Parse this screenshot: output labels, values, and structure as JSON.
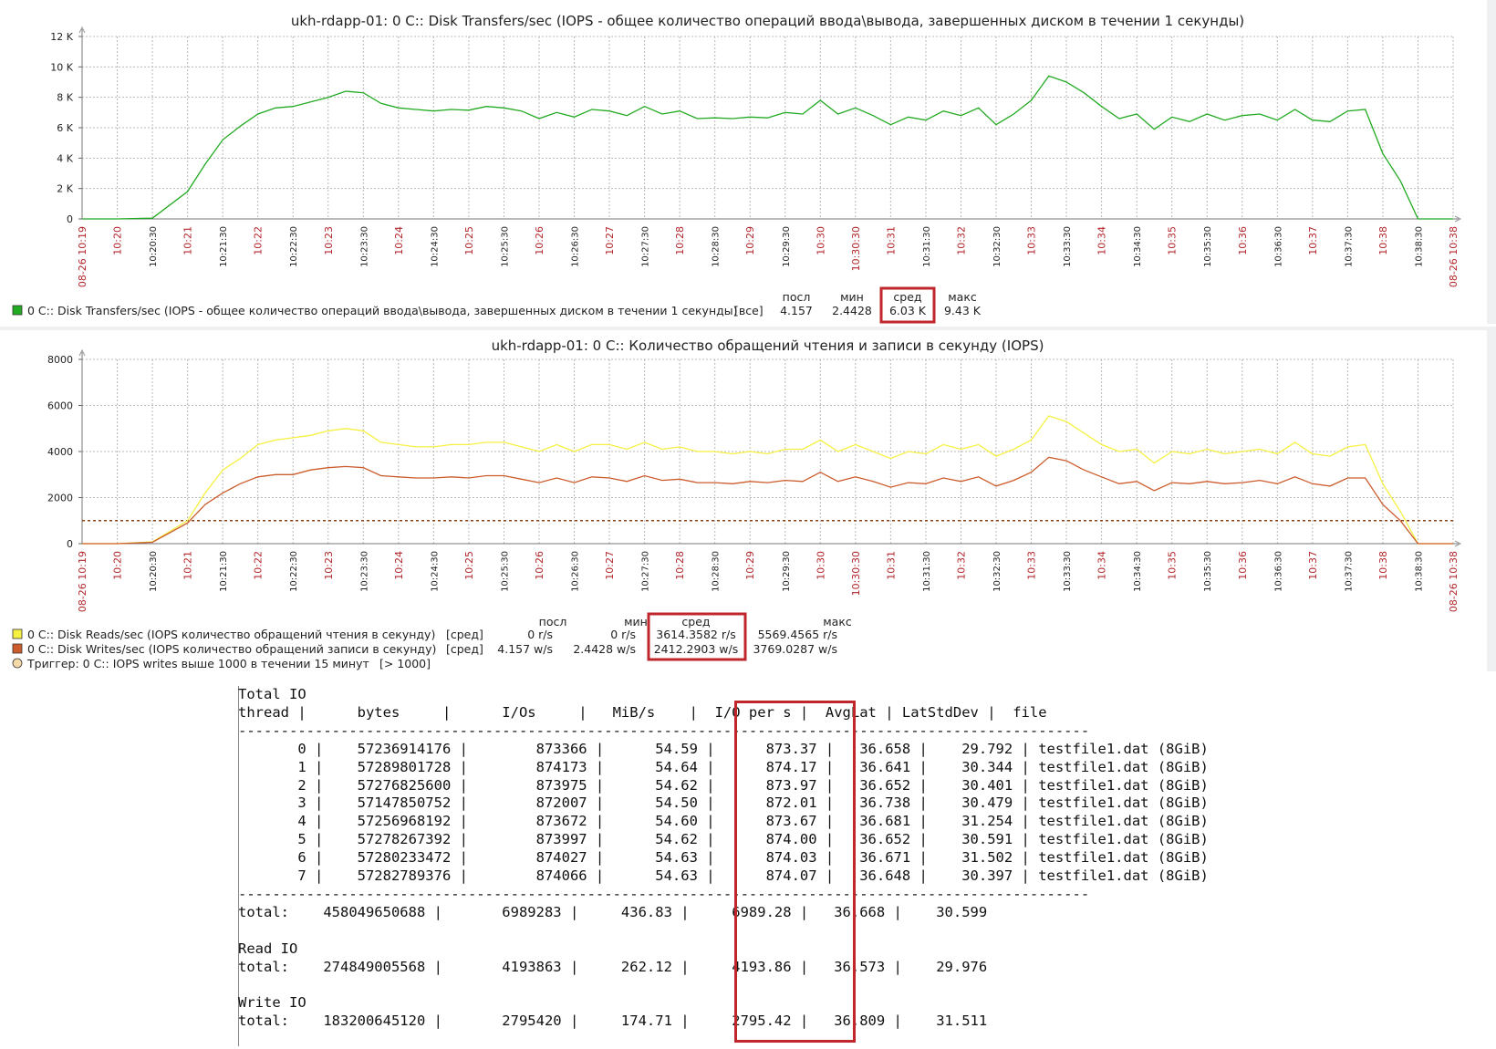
{
  "colors": {
    "chart1_line": "#22aa22",
    "reads_line": "#f5f041",
    "writes_line": "#cc5c2c",
    "trigger_line": "#8b4513",
    "highlight": "#c0272d",
    "axis_red": "#b3262c"
  },
  "x_labels": [
    "08-26 10:19",
    "10:20",
    "10:20:30",
    "10:21",
    "10:21:30",
    "10:22",
    "10:22:30",
    "10:23",
    "10:23:30",
    "10:24",
    "10:24:30",
    "10:25",
    "10:25:30",
    "10:26",
    "10:26:30",
    "10:27",
    "10:27:30",
    "10:28",
    "10:28:30",
    "10:29",
    "10:29:30",
    "10:30",
    "10:30:30",
    "10:31",
    "10:31:30",
    "10:32",
    "10:32:30",
    "10:33",
    "10:33:30",
    "10:34",
    "10:34:30",
    "10:35",
    "10:35:30",
    "10:36",
    "10:36:30",
    "10:37",
    "10:37:30",
    "10:38",
    "10:38:30",
    "08-26 10:38"
  ],
  "chart_data": [
    {
      "type": "line",
      "title": "ukh-rdapp-01: 0 C:: Disk Transfers/sec (IOPS - общее количество операций ввода\\вывода, завершенных диском в течении 1 секунды)",
      "ylim": [
        0,
        12000
      ],
      "y_ticks": [
        "0",
        "2 K",
        "4 K",
        "6 K",
        "8 K",
        "10 K",
        "12 K"
      ],
      "x_range": [
        0,
        39
      ],
      "grid": true,
      "legend_position": "bottom",
      "series": [
        {
          "name": "0 C:: Disk Transfers/sec (IOPS - общее количество операций ввода\\вывода, завершенных диском в течении 1 секунды)",
          "legend_scope": "[все]",
          "stats": {
            "last": "4.157",
            "min": "2.4428",
            "avg": "6.03 K",
            "max": "9.43 K"
          },
          "x": [
            0,
            1,
            2,
            3,
            3.5,
            4,
            4.5,
            5,
            5.5,
            6,
            6.5,
            7,
            7.5,
            8,
            8.5,
            9,
            9.5,
            10,
            10.5,
            11,
            11.5,
            12,
            12.5,
            13,
            13.5,
            14,
            14.5,
            15,
            15.5,
            16,
            16.5,
            17,
            17.5,
            18,
            18.5,
            19,
            19.5,
            20,
            20.5,
            21,
            21.5,
            22,
            22.5,
            23,
            23.5,
            24,
            24.5,
            25,
            25.5,
            26,
            26.5,
            27,
            27.5,
            28,
            28.5,
            29,
            29.5,
            30,
            30.5,
            31,
            31.5,
            32,
            32.5,
            33,
            33.5,
            34,
            34.5,
            35,
            35.5,
            36,
            36.5,
            37,
            37.5,
            38,
            39
          ],
          "values": [
            0,
            0,
            50,
            1800,
            3600,
            5200,
            6100,
            6900,
            7300,
            7400,
            7700,
            8000,
            8400,
            8300,
            7600,
            7300,
            7200,
            7100,
            7200,
            7150,
            7400,
            7300,
            7100,
            6600,
            7000,
            6700,
            7200,
            7100,
            6800,
            7400,
            6900,
            7100,
            6600,
            6650,
            6600,
            6700,
            6650,
            7000,
            6900,
            7800,
            6900,
            7300,
            6800,
            6200,
            6700,
            6500,
            7100,
            6800,
            7300,
            6200,
            6900,
            7800,
            9400,
            9000,
            8300,
            7400,
            6600,
            6900,
            5900,
            6700,
            6400,
            6900,
            6500,
            6800,
            6900,
            6500,
            7200,
            6500,
            6400,
            7100,
            7200,
            4300,
            2500,
            0,
            0
          ]
        }
      ]
    },
    {
      "type": "line",
      "title": "ukh-rdapp-01: 0 C:: Количество обращений чтения и записи в секунду (IOPS)",
      "ylim": [
        0,
        8000
      ],
      "y_ticks": [
        "0",
        "2000",
        "4000",
        "6000",
        "8000"
      ],
      "x_range": [
        0,
        39
      ],
      "grid": true,
      "legend_position": "bottom",
      "series": [
        {
          "name": "0 C:: Disk Reads/sec (IOPS количество обращений чтения в секунду)",
          "legend_scope": "[сред]",
          "stats": {
            "last": "0 r/s",
            "min": "0 r/s",
            "avg": "3614.3582 r/s",
            "max": "5569.4565 r/s"
          },
          "x": [
            0,
            1,
            2,
            3,
            3.5,
            4,
            4.5,
            5,
            5.5,
            6,
            6.5,
            7,
            7.5,
            8,
            8.5,
            9,
            9.5,
            10,
            10.5,
            11,
            11.5,
            12,
            12.5,
            13,
            13.5,
            14,
            14.5,
            15,
            15.5,
            16,
            16.5,
            17,
            17.5,
            18,
            18.5,
            19,
            19.5,
            20,
            20.5,
            21,
            21.5,
            22,
            22.5,
            23,
            23.5,
            24,
            24.5,
            25,
            25.5,
            26,
            26.5,
            27,
            27.5,
            28,
            28.5,
            29,
            29.5,
            30,
            30.5,
            31,
            31.5,
            32,
            32.5,
            33,
            33.5,
            34,
            34.5,
            35,
            35.5,
            36,
            36.5,
            37,
            37.5,
            38,
            39
          ],
          "values": [
            0,
            0,
            80,
            1000,
            2200,
            3200,
            3700,
            4300,
            4500,
            4600,
            4700,
            4900,
            5000,
            4900,
            4400,
            4300,
            4200,
            4200,
            4300,
            4300,
            4400,
            4400,
            4200,
            4000,
            4300,
            4000,
            4300,
            4300,
            4100,
            4400,
            4100,
            4200,
            4000,
            4000,
            3900,
            4000,
            3900,
            4100,
            4100,
            4500,
            4000,
            4300,
            4000,
            3700,
            4000,
            3900,
            4300,
            4100,
            4300,
            3800,
            4100,
            4500,
            5550,
            5300,
            4800,
            4300,
            4000,
            4100,
            3500,
            4000,
            3900,
            4100,
            3900,
            4000,
            4100,
            3900,
            4400,
            3900,
            3800,
            4200,
            4300,
            2600,
            1400,
            0,
            0
          ]
        },
        {
          "name": "0 C:: Disk Writes/sec (IOPS количество обращений записи в секунду)",
          "legend_scope": "[сред]",
          "stats": {
            "last": "4.157 w/s",
            "min": "2.4428 w/s",
            "avg": "2412.2903 w/s",
            "max": "3769.0287 w/s"
          },
          "x": [
            0,
            1,
            2,
            3,
            3.5,
            4,
            4.5,
            5,
            5.5,
            6,
            6.5,
            7,
            7.5,
            8,
            8.5,
            9,
            9.5,
            10,
            10.5,
            11,
            11.5,
            12,
            12.5,
            13,
            13.5,
            14,
            14.5,
            15,
            15.5,
            16,
            16.5,
            17,
            17.5,
            18,
            18.5,
            19,
            19.5,
            20,
            20.5,
            21,
            21.5,
            22,
            22.5,
            23,
            23.5,
            24,
            24.5,
            25,
            25.5,
            26,
            26.5,
            27,
            27.5,
            28,
            28.5,
            29,
            29.5,
            30,
            30.5,
            31,
            31.5,
            32,
            32.5,
            33,
            33.5,
            34,
            34.5,
            35,
            35.5,
            36,
            36.5,
            37,
            37.5,
            38,
            39
          ],
          "values": [
            0,
            0,
            60,
            900,
            1700,
            2200,
            2600,
            2900,
            3000,
            3000,
            3200,
            3300,
            3350,
            3300,
            2950,
            2900,
            2850,
            2850,
            2900,
            2850,
            2950,
            2950,
            2800,
            2650,
            2850,
            2650,
            2900,
            2850,
            2700,
            2950,
            2750,
            2800,
            2650,
            2650,
            2600,
            2700,
            2650,
            2750,
            2700,
            3100,
            2700,
            2900,
            2700,
            2450,
            2650,
            2600,
            2850,
            2700,
            2900,
            2500,
            2750,
            3100,
            3750,
            3600,
            3200,
            2900,
            2600,
            2700,
            2300,
            2650,
            2600,
            2700,
            2600,
            2650,
            2750,
            2600,
            2900,
            2600,
            2500,
            2850,
            2850,
            1700,
            1000,
            0,
            0
          ]
        }
      ],
      "trigger": {
        "label": "Триггер: 0 C:: IOPS writes выше 1000 в течении 15 минут",
        "condition": "[> 1000]",
        "value": 1000
      }
    }
  ],
  "legend_headers": {
    "last": "посл",
    "min": "мин",
    "avg": "сред",
    "max": "макс"
  },
  "io_table": {
    "section_total_label": "Total IO",
    "header": {
      "thread": "thread",
      "bytes": "bytes",
      "ios": "I/Os",
      "mibs": "MiB/s",
      "iops": "I/O per s",
      "avglat": "AvgLat",
      "latstd": "LatStdDev",
      "file": "file"
    },
    "rows": [
      {
        "thread": "0",
        "bytes": "57236914176",
        "ios": "873366",
        "mibs": "54.59",
        "iops": "873.37",
        "avglat": "36.658",
        "latstd": "29.792",
        "file": "testfile1.dat (8GiB)"
      },
      {
        "thread": "1",
        "bytes": "57289801728",
        "ios": "874173",
        "mibs": "54.64",
        "iops": "874.17",
        "avglat": "36.641",
        "latstd": "30.344",
        "file": "testfile1.dat (8GiB)"
      },
      {
        "thread": "2",
        "bytes": "57276825600",
        "ios": "873975",
        "mibs": "54.62",
        "iops": "873.97",
        "avglat": "36.652",
        "latstd": "30.401",
        "file": "testfile1.dat (8GiB)"
      },
      {
        "thread": "3",
        "bytes": "57147850752",
        "ios": "872007",
        "mibs": "54.50",
        "iops": "872.01",
        "avglat": "36.738",
        "latstd": "30.479",
        "file": "testfile1.dat (8GiB)"
      },
      {
        "thread": "4",
        "bytes": "57256968192",
        "ios": "873672",
        "mibs": "54.60",
        "iops": "873.67",
        "avglat": "36.681",
        "latstd": "31.254",
        "file": "testfile1.dat (8GiB)"
      },
      {
        "thread": "5",
        "bytes": "57278267392",
        "ios": "873997",
        "mibs": "54.62",
        "iops": "874.00",
        "avglat": "36.652",
        "latstd": "30.591",
        "file": "testfile1.dat (8GiB)"
      },
      {
        "thread": "6",
        "bytes": "57280233472",
        "ios": "874027",
        "mibs": "54.63",
        "iops": "874.03",
        "avglat": "36.671",
        "latstd": "31.502",
        "file": "testfile1.dat (8GiB)"
      },
      {
        "thread": "7",
        "bytes": "57282789376",
        "ios": "874066",
        "mibs": "54.63",
        "iops": "874.07",
        "avglat": "36.648",
        "latstd": "30.397",
        "file": "testfile1.dat (8GiB)"
      }
    ],
    "total": {
      "label": "total:",
      "bytes": "458049650688",
      "ios": "6989283",
      "mibs": "436.83",
      "iops": "6989.28",
      "avglat": "36.668",
      "latstd": "30.599"
    },
    "read_section_label": "Read IO",
    "read_total": {
      "label": "total:",
      "bytes": "274849005568",
      "ios": "4193863",
      "mibs": "262.12",
      "iops": "4193.86",
      "avglat": "36.573",
      "latstd": "29.976"
    },
    "write_section_label": "Write IO",
    "write_total": {
      "label": "total:",
      "bytes": "183200645120",
      "ios": "2795420",
      "mibs": "174.71",
      "iops": "2795.42",
      "avglat": "36.809",
      "latstd": "31.511"
    }
  }
}
